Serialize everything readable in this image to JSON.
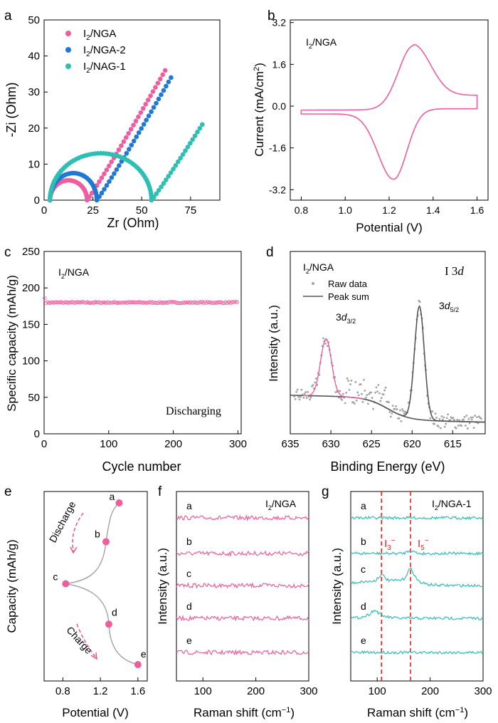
{
  "colors": {
    "pink": "#ef5d9e",
    "blue": "#1f78d1",
    "teal": "#2ebfb4",
    "gray": "#a3a3a3",
    "dark": "#555555",
    "red_dashed": "#ee2222",
    "arrow_pink": "#ee4a8a"
  },
  "panels": {
    "a": "a",
    "b": "b",
    "c": "c",
    "d": "d",
    "e": "e",
    "f": "f",
    "g": "g"
  },
  "chart_data": [
    {
      "panel": "a",
      "type": "scatter",
      "xlabel": "Zr (Ohm)",
      "ylabel": "-Zi (Ohm)",
      "xlim": [
        0,
        90
      ],
      "ylim": [
        0,
        50
      ],
      "xticks": [
        0,
        25,
        50,
        75
      ],
      "yticks": [
        0,
        10,
        20,
        30,
        40,
        50
      ],
      "legend_position": "top-left",
      "series": [
        {
          "name": "I2/NGA",
          "color_key": "pink",
          "shape": "nyquist",
          "x_start": 3,
          "x_min": 22,
          "peak_y": 5.5,
          "line_end": [
            62,
            36
          ]
        },
        {
          "name": "I2/NGA-2",
          "color_key": "blue",
          "shape": "nyquist",
          "x_start": 3,
          "x_min": 27,
          "peak_y": 7.5,
          "line_end": [
            65,
            34
          ]
        },
        {
          "name": "I2/NAG-1",
          "color_key": "teal",
          "shape": "nyquist",
          "x_start": 3,
          "x_min": 55,
          "peak_y": 13,
          "line_end": [
            81,
            21
          ]
        }
      ]
    },
    {
      "panel": "b",
      "type": "line",
      "title": "I2/NGA",
      "xlabel": "Potential (V)",
      "ylabel": "Current (mA/cm2)",
      "xlim": [
        0.75,
        1.65
      ],
      "ylim": [
        -3.6,
        3.3
      ],
      "xticks": [
        0.8,
        1.0,
        1.2,
        1.4,
        1.6
      ],
      "yticks": [
        -3.2,
        -1.6,
        0.0,
        1.6,
        3.2
      ],
      "xtick_labels": [
        "0.8",
        "1.0",
        "1.2",
        "1.4",
        "1.6"
      ],
      "ytick_labels": [
        "-3.2",
        "-1.6",
        "0.0",
        "1.6",
        "3.2"
      ],
      "series": [
        {
          "name": "",
          "color_key": "pink",
          "anodic_peak": [
            1.31,
            2.35
          ],
          "cathodic_peak": [
            1.22,
            -2.8
          ]
        }
      ]
    },
    {
      "panel": "c",
      "type": "scatter",
      "title": "I2/NGA",
      "annotation": "Discharging",
      "xlabel": "Cycle number",
      "ylabel": "Specific capacity (mAh/g)",
      "xlim": [
        0,
        305
      ],
      "ylim": [
        0,
        250
      ],
      "xticks": [
        0,
        100,
        200,
        300
      ],
      "yticks": [
        0,
        50,
        100,
        150,
        200,
        250
      ],
      "series": [
        {
          "name": "",
          "color_key": "pink",
          "first_value": 186,
          "plateau": 180,
          "n_cycles": 300
        }
      ]
    },
    {
      "panel": "d",
      "type": "line",
      "title": "I2/NGA",
      "annotation": "I 3d",
      "xlabel": "Binding Energy (eV)",
      "ylabel": "Intensity (a.u.)",
      "xlim": [
        635,
        611
      ],
      "xticks": [
        635,
        630,
        625,
        620,
        615
      ],
      "legend_position": "top-left",
      "legend": [
        "Raw data",
        "Peak sum"
      ],
      "peaks": [
        {
          "label_main": "3d",
          "label_sub": "3/2",
          "center": 630.6,
          "height": 0.68
        },
        {
          "label_main": "3d",
          "label_sub": "5/2",
          "center": 619.1,
          "height": 1.0
        }
      ]
    },
    {
      "panel": "e",
      "type": "line",
      "xlabel": "Potential (V)",
      "ylabel": "Capacity (mAh/g)",
      "xlim": [
        0.6,
        1.7
      ],
      "xticks": [
        0.8,
        1.2,
        1.6
      ],
      "points": [
        {
          "label": "a",
          "x": 1.4,
          "y": 1.0
        },
        {
          "label": "b",
          "x": 1.26,
          "y": 0.76
        },
        {
          "label": "c",
          "x": 0.83,
          "y": 0.5
        },
        {
          "label": "d",
          "x": 1.29,
          "y": 0.25
        },
        {
          "label": "e",
          "x": 1.6,
          "y": 0.0
        }
      ],
      "arrows": [
        "Discharge",
        "Charge"
      ]
    },
    {
      "panel": "f",
      "type": "line",
      "title": "I2/NGA",
      "xlabel": "Raman shift (cm-1)",
      "ylabel": "Intensity (a.u.)",
      "xlim": [
        50,
        300
      ],
      "xticks": [
        100,
        200,
        300
      ],
      "series": [
        {
          "name": "a",
          "color_key": "pink"
        },
        {
          "name": "b",
          "color_key": "pink"
        },
        {
          "name": "c",
          "color_key": "pink"
        },
        {
          "name": "d",
          "color_key": "pink"
        },
        {
          "name": "e",
          "color_key": "pink"
        }
      ]
    },
    {
      "panel": "g",
      "type": "line",
      "title": "I2/NGA-1",
      "xlabel": "Raman shift (cm-1)",
      "ylabel": "Intensity (a.u.)",
      "xlim": [
        50,
        300
      ],
      "xticks": [
        100,
        200,
        300
      ],
      "markers": [
        {
          "label_main": "I",
          "label_sub": "3",
          "label_sup": "−",
          "x": 108
        },
        {
          "label_main": "I",
          "label_sub": "5",
          "label_sup": "−",
          "x": 163
        }
      ],
      "series": [
        {
          "name": "a",
          "color_key": "teal"
        },
        {
          "name": "b",
          "color_key": "teal",
          "peaks": [
            [
              163,
              0.9
            ]
          ]
        },
        {
          "name": "c",
          "color_key": "teal",
          "peaks": [
            [
              108,
              1.8
            ],
            [
              163,
              3.2
            ]
          ],
          "hump": 1.5
        },
        {
          "name": "d",
          "color_key": "teal",
          "peaks": [
            [
              95,
              1.2
            ]
          ]
        },
        {
          "name": "e",
          "color_key": "teal"
        }
      ]
    }
  ]
}
